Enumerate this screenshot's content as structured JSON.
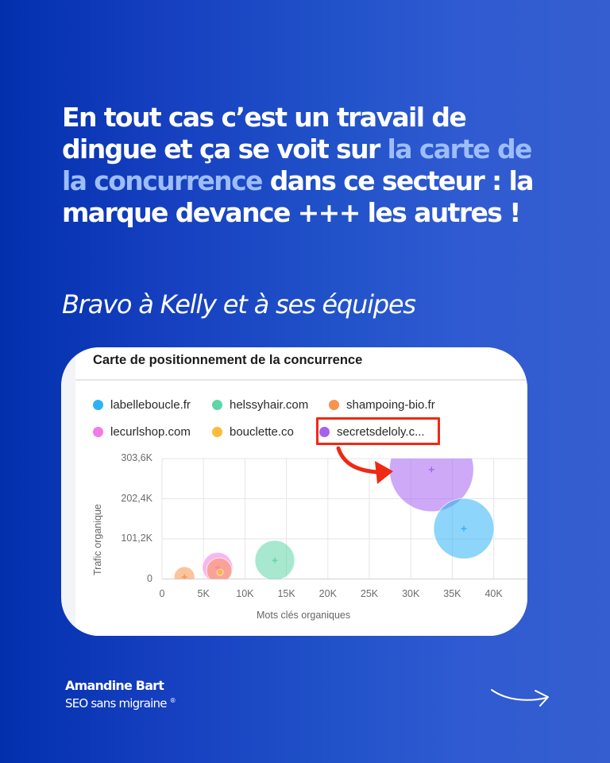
{
  "headline": {
    "part1": "En tout cas c’est un travail de dingue et ça se voit sur ",
    "highlight": "la carte de la concurrence",
    "part2": " dans ce secteur : la marque devance +++ les autres !"
  },
  "subline": "Bravo à Kelly et à ses équipes",
  "card": {
    "title": "Carte de positionnement de la concurrence"
  },
  "legend": [
    {
      "label": "labelleboucle.fr",
      "color": "#2fb2f5"
    },
    {
      "label": "helssyhair.com",
      "color": "#5ed6a6"
    },
    {
      "label": "shampoing-bio.fr",
      "color": "#f9934e"
    },
    {
      "label": "lecurlshop.com",
      "color": "#f27be6"
    },
    {
      "label": "bouclette.co",
      "color": "#fcbb3a"
    },
    {
      "label": "secretsdeloly.c...",
      "color": "#a462f0"
    }
  ],
  "colors": {
    "accent_highlight": "#9dbdfb",
    "annotation_red": "#ee2a14",
    "background_start": "#0230ad",
    "background_end": "#355fd0"
  },
  "chart_data": {
    "type": "scatter",
    "subtype": "bubble",
    "title": "Carte de positionnement de la concurrence",
    "xlabel": "Mots clés organiques",
    "ylabel": "Trafic organique",
    "xlim": [
      0,
      43600
    ],
    "ylim": [
      0,
      303600
    ],
    "x_ticks": [
      "0",
      "5K",
      "10K",
      "15K",
      "20K",
      "25K",
      "30K",
      "35K",
      "40K"
    ],
    "y_ticks": [
      "0",
      "101,2K",
      "202,4K",
      "303,6K"
    ],
    "grid": true,
    "legend_position": "top",
    "series": [
      {
        "name": "labelleboucle.fr",
        "x": 36400,
        "y": 127000,
        "size": 38,
        "color": "#2fb2f5"
      },
      {
        "name": "helssyhair.com",
        "x": 13600,
        "y": 47000,
        "size": 25,
        "color": "#5ed6a6"
      },
      {
        "name": "shampoing-bio.fr",
        "x": 2700,
        "y": 5000,
        "size": 13,
        "color": "#f9934e"
      },
      {
        "name": "shampoing-bio.fr (2)",
        "x": 6900,
        "y": 21000,
        "size": 16,
        "color": "#f9934e"
      },
      {
        "name": "lecurlshop.com",
        "x": 6700,
        "y": 29000,
        "size": 19,
        "color": "#f27be6"
      },
      {
        "name": "bouclette.co",
        "x": 7000,
        "y": 17000,
        "size": 4,
        "color": "#fcbb3a"
      },
      {
        "name": "secretsdeloly.c...",
        "x": 32500,
        "y": 276000,
        "size": 53,
        "color": "#a462f0"
      }
    ],
    "annotation": "red box around secretsdeloly.c... legend entry with arrow pointing to its bubble"
  },
  "footer": {
    "name": "Amandine Bart",
    "tagline": "SEO sans migraine",
    "registered": "®"
  },
  "icons": {
    "next": "hand-drawn-arrow-right-icon"
  }
}
